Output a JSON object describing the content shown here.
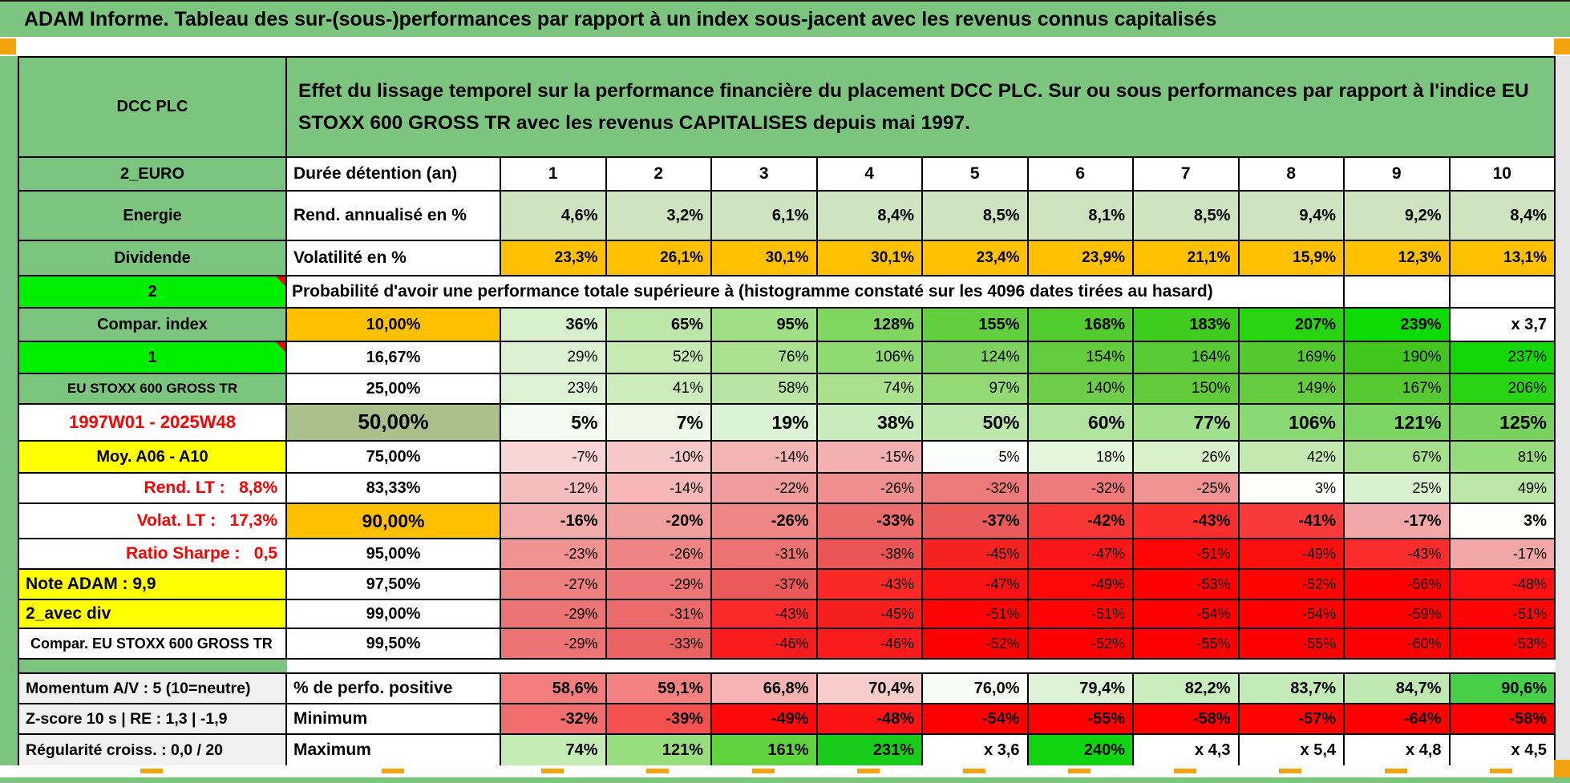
{
  "title": "ADAM Informe. Tableau des sur-(sous-)performances par rapport à un index sous-jacent avec les revenus connus capitalisés",
  "header": {
    "asset": "DCC PLC",
    "description": "Effet du lissage temporel sur la performance financière du placement DCC PLC. Sur ou sous performances par rapport à l'indice EU STOXX 600 GROSS TR avec les revenus CAPITALISES depuis mai 1997."
  },
  "colors": {
    "chrome_green": "#7CC57E",
    "accent_orange": "#FFC000",
    "bright_green": "#00EE00",
    "highlight_yellow": "#FFFF00"
  },
  "table": {
    "rows": [
      {
        "name": "duree",
        "a": {
          "t": "2_EURO",
          "bg": "#7CC57E"
        },
        "b": {
          "t": "Durée détention (an)",
          "bg": "#FFFFFF"
        },
        "cells": [
          {
            "t": "1",
            "bg": "#FFFFFF"
          },
          {
            "t": "2",
            "bg": "#FFFFFF"
          },
          {
            "t": "3",
            "bg": "#FFFFFF"
          },
          {
            "t": "4",
            "bg": "#FFFFFF"
          },
          {
            "t": "5",
            "bg": "#FFFFFF"
          },
          {
            "t": "6",
            "bg": "#FFFFFF"
          },
          {
            "t": "7",
            "bg": "#FFFFFF"
          },
          {
            "t": "8",
            "bg": "#FFFFFF"
          },
          {
            "t": "9",
            "bg": "#FFFFFF"
          },
          {
            "t": "10",
            "bg": "#FFFFFF"
          }
        ]
      },
      {
        "name": "rend",
        "a": {
          "t": "Energie",
          "bg": "#7CC57E"
        },
        "b": {
          "t": "Rend. annualisé en %",
          "bg": "#FFFFFF"
        },
        "cells": [
          {
            "t": "4,6%",
            "bg": "#CEE3BF"
          },
          {
            "t": "3,2%",
            "bg": "#CEE3BF"
          },
          {
            "t": "6,1%",
            "bg": "#CEE3BF"
          },
          {
            "t": "8,4%",
            "bg": "#CEE3BF"
          },
          {
            "t": "8,5%",
            "bg": "#CEE3BF"
          },
          {
            "t": "8,1%",
            "bg": "#CEE3BF"
          },
          {
            "t": "8,5%",
            "bg": "#CEE3BF"
          },
          {
            "t": "9,4%",
            "bg": "#CEE3BF"
          },
          {
            "t": "9,2%",
            "bg": "#CEE3BF"
          },
          {
            "t": "8,4%",
            "bg": "#CEE3BF"
          }
        ]
      },
      {
        "name": "volat",
        "a": {
          "t": "Dividende",
          "bg": "#7CC57E"
        },
        "b": {
          "t": "Volatilité en %",
          "bg": "#FFFFFF"
        },
        "cells": [
          {
            "t": "23,3%",
            "bg": "#FFC000"
          },
          {
            "t": "26,1%",
            "bg": "#FFC000"
          },
          {
            "t": "30,1%",
            "bg": "#FFC000"
          },
          {
            "t": "30,1%",
            "bg": "#FFC000"
          },
          {
            "t": "23,4%",
            "bg": "#FFC000"
          },
          {
            "t": "23,9%",
            "bg": "#FFC000"
          },
          {
            "t": "21,1%",
            "bg": "#FFC000"
          },
          {
            "t": "15,9%",
            "bg": "#FFC000"
          },
          {
            "t": "12,3%",
            "bg": "#FFC000"
          },
          {
            "t": "13,1%",
            "bg": "#FFC000"
          }
        ]
      },
      {
        "name": "proba",
        "kind": "proba",
        "a": {
          "t": "2",
          "bg": "#00EE00",
          "triangle": true
        },
        "merged": {
          "t": "Probabilité d'avoir une performance totale supérieure à (histogramme constaté sur les 4096 dates tirées au hasard)",
          "bg": "#FFFFFF"
        },
        "empty": [
          {
            "t": "",
            "bg": "#FFFFFF"
          },
          {
            "t": "",
            "bg": "#FFFFFF"
          }
        ]
      },
      {
        "name": "p10",
        "a": {
          "t": "Compar. index",
          "bg": "#7CC57E"
        },
        "b": {
          "t": "10,00%",
          "bg": "#FFC000"
        },
        "cells": [
          {
            "t": "36%",
            "bg": "#D8F1CD"
          },
          {
            "t": "65%",
            "bg": "#BCE7A9"
          },
          {
            "t": "95%",
            "bg": "#9FDF85"
          },
          {
            "t": "128%",
            "bg": "#7FD75F"
          },
          {
            "t": "155%",
            "bg": "#62CF3E"
          },
          {
            "t": "168%",
            "bg": "#52CB2C"
          },
          {
            "t": "183%",
            "bg": "#3ECD1E"
          },
          {
            "t": "207%",
            "bg": "#28D410"
          },
          {
            "t": "239%",
            "bg": "#0CDB02"
          },
          {
            "t": "x 3,7",
            "bg": "#FFFFFF"
          }
        ]
      },
      {
        "name": "p1667",
        "a": {
          "t": "1",
          "bg": "#00EE00",
          "triangle": true
        },
        "b": {
          "t": "16,67%",
          "bg": "#FFFFFF"
        },
        "cells": [
          {
            "t": "29%",
            "bg": "#DCF2D3"
          },
          {
            "t": "52%",
            "bg": "#C5EBB3"
          },
          {
            "t": "76%",
            "bg": "#ABE292"
          },
          {
            "t": "106%",
            "bg": "#90DA72"
          },
          {
            "t": "124%",
            "bg": "#7ED360"
          },
          {
            "t": "154%",
            "bg": "#62CC3C"
          },
          {
            "t": "164%",
            "bg": "#58CA34"
          },
          {
            "t": "169%",
            "bg": "#53C92E"
          },
          {
            "t": "190%",
            "bg": "#40C61C"
          },
          {
            "t": "237%",
            "bg": "#14D806"
          }
        ]
      },
      {
        "name": "p25",
        "a": {
          "t": "EU STOXX 600 GROSS TR",
          "bg": "#7CC57E"
        },
        "b": {
          "t": "25,00%",
          "bg": "#FFFFFF"
        },
        "cells": [
          {
            "t": "23%",
            "bg": "#DEF3D6"
          },
          {
            "t": "41%",
            "bg": "#CCECBC"
          },
          {
            "t": "58%",
            "bg": "#BAE4A3"
          },
          {
            "t": "74%",
            "bg": "#AAE18C"
          },
          {
            "t": "97%",
            "bg": "#93D974"
          },
          {
            "t": "140%",
            "bg": "#6ECD48"
          },
          {
            "t": "150%",
            "bg": "#62CB3C"
          },
          {
            "t": "149%",
            "bg": "#64CC3E"
          },
          {
            "t": "167%",
            "bg": "#56C830"
          },
          {
            "t": "206%",
            "bg": "#2AD412"
          }
        ]
      },
      {
        "name": "p50",
        "a": {
          "t": "1997W01 - 2025W48",
          "bg": "#FFFFFF",
          "fg": "#FF0000"
        },
        "b": {
          "t": "50,00%",
          "bg": "#A9C08B"
        },
        "cells": [
          {
            "t": "5%",
            "bg": "#F2FAF0"
          },
          {
            "t": "7%",
            "bg": "#ECF8E8"
          },
          {
            "t": "19%",
            "bg": "#DCF2D4"
          },
          {
            "t": "38%",
            "bg": "#C8ECBB"
          },
          {
            "t": "50%",
            "bg": "#BCE8AC"
          },
          {
            "t": "60%",
            "bg": "#B0E49E"
          },
          {
            "t": "77%",
            "bg": "#A0DF8C"
          },
          {
            "t": "106%",
            "bg": "#89D871"
          },
          {
            "t": "121%",
            "bg": "#7CD462"
          },
          {
            "t": "125%",
            "bg": "#78D35E"
          }
        ]
      },
      {
        "name": "p75",
        "a": {
          "t": "Moy. A06 - A10",
          "bg": "#FFFF00"
        },
        "b": {
          "t": "75,00%",
          "bg": "#FFFFFF"
        },
        "cells": [
          {
            "t": "-7%",
            "bg": "#F8D6D6"
          },
          {
            "t": "-10%",
            "bg": "#F6C8C8"
          },
          {
            "t": "-14%",
            "bg": "#F3B4B4"
          },
          {
            "t": "-15%",
            "bg": "#F2B0B0"
          },
          {
            "t": "5%",
            "bg": "#FBFDFA"
          },
          {
            "t": "18%",
            "bg": "#E3F5DB"
          },
          {
            "t": "26%",
            "bg": "#D7F0CA"
          },
          {
            "t": "42%",
            "bg": "#C3E9B0"
          },
          {
            "t": "67%",
            "bg": "#A5E08D"
          },
          {
            "t": "81%",
            "bg": "#97DC7C"
          }
        ]
      },
      {
        "name": "p8333",
        "a": {
          "t": "Rend. LT :   8,8%",
          "bg": "#FFFFFF",
          "fg": "#FF0000"
        },
        "b": {
          "t": "83,33%",
          "bg": "#FFFFFF"
        },
        "cells": [
          {
            "t": "-12%",
            "bg": "#F5BEBE"
          },
          {
            "t": "-14%",
            "bg": "#F4B6B6"
          },
          {
            "t": "-22%",
            "bg": "#F19C9C"
          },
          {
            "t": "-26%",
            "bg": "#EF8E8E"
          },
          {
            "t": "-32%",
            "bg": "#ED7A7A"
          },
          {
            "t": "-32%",
            "bg": "#ED7A7A"
          },
          {
            "t": "-25%",
            "bg": "#EF9292"
          },
          {
            "t": "3%",
            "bg": "#FDFEFC"
          },
          {
            "t": "25%",
            "bg": "#D9F1CF"
          },
          {
            "t": "49%",
            "bg": "#BDE6A6"
          }
        ]
      },
      {
        "name": "p90",
        "a": {
          "t": "Volat. LT :   17,3%",
          "bg": "#FFFFFF",
          "fg": "#FF0000"
        },
        "b": {
          "t": "90,00%",
          "bg": "#FFC000"
        },
        "cells": [
          {
            "t": "-16%",
            "bg": "#F3ACAC"
          },
          {
            "t": "-20%",
            "bg": "#F19E9E"
          },
          {
            "t": "-26%",
            "bg": "#EE8686"
          },
          {
            "t": "-33%",
            "bg": "#EC6C6C"
          },
          {
            "t": "-37%",
            "bg": "#EA5C5C"
          },
          {
            "t": "-42%",
            "bg": "#F93636"
          },
          {
            "t": "-43%",
            "bg": "#FB2E2E"
          },
          {
            "t": "-41%",
            "bg": "#F83A3A"
          },
          {
            "t": "-17%",
            "bg": "#F2A8A8"
          },
          {
            "t": "3%",
            "bg": "#FEFEFD"
          }
        ]
      },
      {
        "name": "p95",
        "a": {
          "t": "Ratio Sharpe :   0,5",
          "bg": "#FFFFFF",
          "fg": "#FF0000"
        },
        "b": {
          "t": "95,00%",
          "bg": "#FFFFFF"
        },
        "cells": [
          {
            "t": "-23%",
            "bg": "#F09292"
          },
          {
            "t": "-26%",
            "bg": "#EE8484"
          },
          {
            "t": "-31%",
            "bg": "#EC7272"
          },
          {
            "t": "-38%",
            "bg": "#EA5454"
          },
          {
            "t": "-45%",
            "bg": "#F52222"
          },
          {
            "t": "-47%",
            "bg": "#F91616"
          },
          {
            "t": "-51%",
            "bg": "#FF0606"
          },
          {
            "t": "-49%",
            "bg": "#FB1010"
          },
          {
            "t": "-43%",
            "bg": "#FB2C2C"
          },
          {
            "t": "-17%",
            "bg": "#F3A6A6"
          }
        ]
      },
      {
        "name": "p975",
        "a": {
          "t": "Note ADAM : 9,9",
          "bg": "#FFFF00"
        },
        "b": {
          "t": "97,50%",
          "bg": "#FFFFFF"
        },
        "cells": [
          {
            "t": "-27%",
            "bg": "#EE8080"
          },
          {
            "t": "-29%",
            "bg": "#ED7676"
          },
          {
            "t": "-37%",
            "bg": "#EA5858"
          },
          {
            "t": "-43%",
            "bg": "#FB2828"
          },
          {
            "t": "-47%",
            "bg": "#FA1212"
          },
          {
            "t": "-49%",
            "bg": "#FF0808"
          },
          {
            "t": "-53%",
            "bg": "#FF0000"
          },
          {
            "t": "-52%",
            "bg": "#FF0202"
          },
          {
            "t": "-56%",
            "bg": "#FF0000"
          },
          {
            "t": "-48%",
            "bg": "#FC1010"
          }
        ]
      },
      {
        "name": "p99",
        "a": {
          "t": "2_avec div",
          "bg": "#FFFF00"
        },
        "b": {
          "t": "99,00%",
          "bg": "#FFFFFF"
        },
        "cells": [
          {
            "t": "-29%",
            "bg": "#ED7474"
          },
          {
            "t": "-31%",
            "bg": "#EC6A6A"
          },
          {
            "t": "-43%",
            "bg": "#FA2A2A"
          },
          {
            "t": "-45%",
            "bg": "#F61E1E"
          },
          {
            "t": "-51%",
            "bg": "#FF0404"
          },
          {
            "t": "-51%",
            "bg": "#FF0404"
          },
          {
            "t": "-54%",
            "bg": "#FF0000"
          },
          {
            "t": "-54%",
            "bg": "#FF0000"
          },
          {
            "t": "-59%",
            "bg": "#FF0000"
          },
          {
            "t": "-51%",
            "bg": "#FF0404"
          }
        ]
      },
      {
        "name": "p995",
        "a": {
          "t": "Compar. EU STOXX 600 GROSS TR",
          "bg": "#FFFFFF"
        },
        "b": {
          "t": "99,50%",
          "bg": "#FFFFFF"
        },
        "cells": [
          {
            "t": "-29%",
            "bg": "#ED7474"
          },
          {
            "t": "-33%",
            "bg": "#EB6262"
          },
          {
            "t": "-46%",
            "bg": "#F91C1C"
          },
          {
            "t": "-46%",
            "bg": "#F91C1C"
          },
          {
            "t": "-52%",
            "bg": "#FF0000"
          },
          {
            "t": "-52%",
            "bg": "#FF0000"
          },
          {
            "t": "-55%",
            "bg": "#FF0000"
          },
          {
            "t": "-55%",
            "bg": "#FF0000"
          },
          {
            "t": "-60%",
            "bg": "#FF0000"
          },
          {
            "t": "-53%",
            "bg": "#FF0000"
          }
        ]
      },
      {
        "name": "spacer",
        "kind": "spacer",
        "a": {
          "t": "",
          "bg": "#7CC57E"
        },
        "rest_bg": "#FFFFFF"
      },
      {
        "name": "perfpos",
        "a": {
          "t": "Momentum A/V : 5 (10=neutre)",
          "bg": "#F0F0F0"
        },
        "b": {
          "t": "% de perfo. positive",
          "bg": "#FFFFFF"
        },
        "cells": [
          {
            "t": "58,6%",
            "bg": "#F47E7E"
          },
          {
            "t": "59,1%",
            "bg": "#F48282"
          },
          {
            "t": "66,8%",
            "bg": "#F5B2B2"
          },
          {
            "t": "70,4%",
            "bg": "#F9CCCC"
          },
          {
            "t": "76,0%",
            "bg": "#F7FCF5"
          },
          {
            "t": "79,4%",
            "bg": "#DEF2D7"
          },
          {
            "t": "82,2%",
            "bg": "#C9EDBD"
          },
          {
            "t": "83,7%",
            "bg": "#C3EBB5"
          },
          {
            "t": "84,7%",
            "bg": "#BFE9B1"
          },
          {
            "t": "90,6%",
            "bg": "#48CF48"
          }
        ]
      },
      {
        "name": "minimum",
        "a": {
          "t": "Z-score 10 s | RE : 1,3 | -1,9",
          "bg": "#F0F0F0"
        },
        "b": {
          "t": "Minimum",
          "bg": "#FFFFFF"
        },
        "cells": [
          {
            "t": "-32%",
            "bg": "#F26E6E"
          },
          {
            "t": "-39%",
            "bg": "#F45050"
          },
          {
            "t": "-49%",
            "bg": "#FF0A0A"
          },
          {
            "t": "-48%",
            "bg": "#FB1414"
          },
          {
            "t": "-54%",
            "bg": "#FF0000"
          },
          {
            "t": "-55%",
            "bg": "#FF0000"
          },
          {
            "t": "-58%",
            "bg": "#FF0000"
          },
          {
            "t": "-57%",
            "bg": "#FF0202"
          },
          {
            "t": "-64%",
            "bg": "#FF0000"
          },
          {
            "t": "-58%",
            "bg": "#FF0000"
          }
        ]
      },
      {
        "name": "maximum",
        "a": {
          "t": "Régularité croiss. : 0,0 / 20",
          "bg": "#F0F0F0"
        },
        "b": {
          "t": "Maximum",
          "bg": "#FFFFFF"
        },
        "cells": [
          {
            "t": "74%",
            "bg": "#C6ECB6"
          },
          {
            "t": "121%",
            "bg": "#98DE7E"
          },
          {
            "t": "161%",
            "bg": "#60D23E"
          },
          {
            "t": "231%",
            "bg": "#1ACC1A"
          },
          {
            "t": "x 3,6",
            "bg": "#FFFFFF"
          },
          {
            "t": "240%",
            "bg": "#10D410"
          },
          {
            "t": "x 4,3",
            "bg": "#FFFFFF"
          },
          {
            "t": "x 5,4",
            "bg": "#FFFFFF"
          },
          {
            "t": "x 4,8",
            "bg": "#FFFFFF"
          },
          {
            "t": "x 4,5",
            "bg": "#FFFFFF"
          }
        ]
      }
    ]
  }
}
